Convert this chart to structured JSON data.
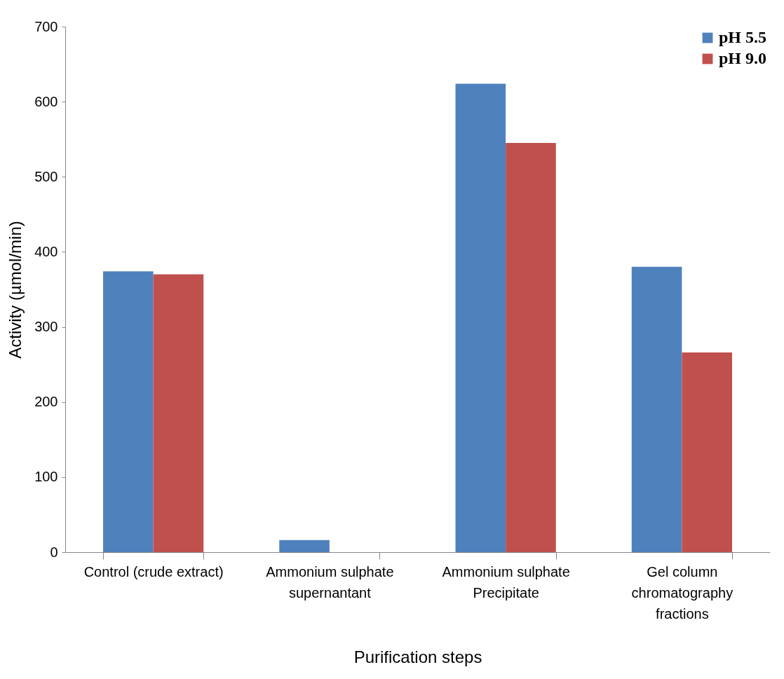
{
  "chart_data": {
    "type": "bar",
    "xlabel": "Purification steps",
    "ylabel": "Activity (µmol/min)",
    "categories": [
      "Control (crude extract)",
      "Ammonium sulphate supernantant",
      "Ammonium sulphate Precipitate",
      "Gel column chromatography fractions"
    ],
    "series": [
      {
        "name": "pH 5.5",
        "color": "#4f81bd",
        "values": [
          374,
          16,
          624,
          380
        ]
      },
      {
        "name": "pH 9.0",
        "color": "#c0504d",
        "values": [
          370,
          0,
          545,
          266
        ]
      }
    ],
    "ylim": [
      0,
      700
    ],
    "yticks": [
      0,
      100,
      200,
      300,
      400,
      500,
      600,
      700
    ],
    "grid": false,
    "legend": "top right"
  }
}
